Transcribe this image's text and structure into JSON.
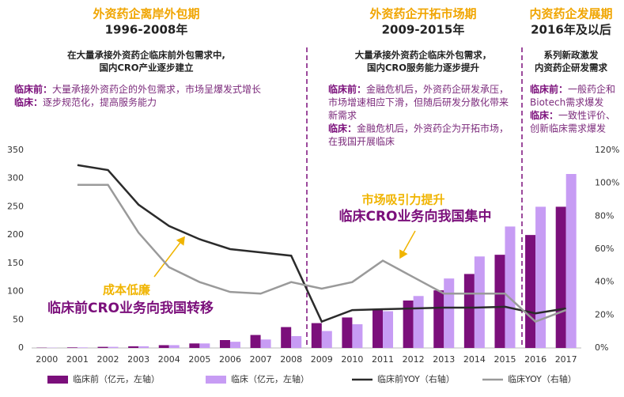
{
  "periods": [
    {
      "title": "外资药企离岸外包期",
      "years": "1996-2008年",
      "subtitle": [
        "在大量承接外资药企临床前外包需求中,",
        "国内CRO产业逐步建立"
      ],
      "notes": [
        {
          "label": "临床前：",
          "lines": [
            "大量承接外资药企的外包需求，市场呈爆发式增长"
          ]
        },
        {
          "label": "临床：",
          "lines": [
            "逐步规范化，提高服务能力"
          ]
        }
      ]
    },
    {
      "title": "外资药企开拓市场期",
      "years": "2009-2015年",
      "subtitle": [
        "大量承接外资药企临床外包需求，",
        "国内CRO服务能力逐步提升"
      ],
      "notes": [
        {
          "label": "临床前：",
          "lines": [
            "金融危机后，外资药企研发承压，",
            "市场增速相应下滑，但随后研发分散化带来",
            "新需求"
          ]
        },
        {
          "label": "临床：",
          "lines": [
            "金融危机后，外资药企为开拓市场，",
            "在我国开展临床"
          ]
        }
      ]
    },
    {
      "title": "内资药企发展期",
      "years": "2016年及以后",
      "subtitle": [
        "系列新政激发",
        "内资药企研发需求"
      ],
      "notes": [
        {
          "label": "临床前：",
          "lines": [
            "一般药企和",
            "Biotech需求爆发"
          ]
        },
        {
          "label": "临床：",
          "lines": [
            "一致性评价、",
            "创新临床需求爆发"
          ]
        }
      ]
    }
  ],
  "chart_data": {
    "type": "bar_line",
    "categories": [
      "2000",
      "2001",
      "2002",
      "2003",
      "2004",
      "2005",
      "2006",
      "2007",
      "2008",
      "2009",
      "2010",
      "2011",
      "2012",
      "2013",
      "2014",
      "2015",
      "2016",
      "2017"
    ],
    "series": [
      {
        "name": "临床前（亿元，左轴）",
        "type": "bar",
        "color": "#7b0f7b",
        "values": [
          0.5,
          1,
          2,
          3,
          5,
          8,
          14,
          23,
          37,
          44,
          54,
          68,
          84,
          102,
          131,
          165,
          200,
          250
        ]
      },
      {
        "name": "临床（亿元，左轴）",
        "type": "bar",
        "color": "#c79cf4",
        "values": [
          0.5,
          1,
          2,
          3,
          5,
          8,
          11,
          15,
          21,
          30,
          42,
          65,
          92,
          123,
          162,
          215,
          250,
          308
        ]
      },
      {
        "name": "临床前YOY（右轴）",
        "type": "line",
        "axis": "y2",
        "color": "#2b2b2b",
        "values": [
          null,
          111,
          108,
          87,
          74,
          66,
          60,
          58,
          56,
          16,
          23,
          23.5,
          24,
          24.5,
          24.5,
          25,
          21,
          24
        ]
      },
      {
        "name": "临床YOY（右轴）",
        "type": "line",
        "axis": "y2",
        "color": "#9a9a9a",
        "values": [
          null,
          99,
          99,
          70,
          49,
          40,
          34,
          33,
          40,
          36,
          40,
          53,
          43,
          33,
          33,
          33,
          16,
          23
        ]
      }
    ],
    "ylim": [
      0,
      350
    ],
    "yticks": [
      0,
      50,
      100,
      150,
      200,
      250,
      300,
      350
    ],
    "y2lim": [
      0,
      120
    ],
    "y2ticks": [
      {
        "value": 0,
        "label": "0%"
      },
      {
        "value": 20,
        "label": "20%"
      },
      {
        "value": 40,
        "label": "40%"
      },
      {
        "value": 60,
        "label": "60%"
      },
      {
        "value": 80,
        "label": "80%"
      },
      {
        "value": 100,
        "label": "100%"
      },
      {
        "value": 120,
        "label": "120%"
      }
    ],
    "annotations": [
      {
        "lines": [
          "成本低廉",
          "临床前CRO业务向我国转移"
        ]
      },
      {
        "lines": [
          "市场吸引力提升",
          "临床CRO业务向我国集中"
        ]
      }
    ]
  }
}
